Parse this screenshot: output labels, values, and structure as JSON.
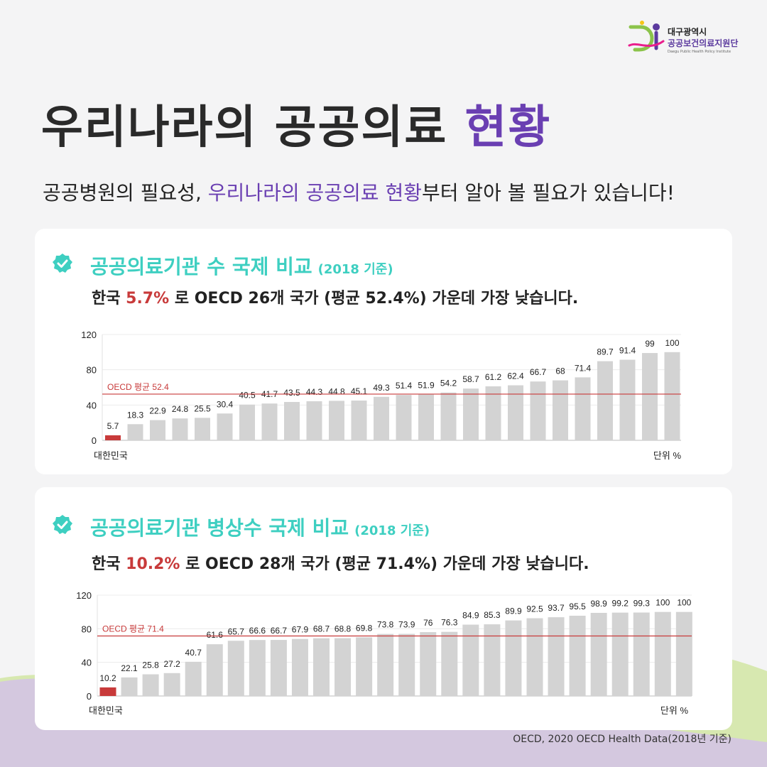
{
  "logo": {
    "org_line1": "대구광역시",
    "org_line2": "공공보건의료지원단",
    "org_english": "Daegu Public Health Policy Institute"
  },
  "title": {
    "main": "우리나라의 공공의료",
    "accent": "현황"
  },
  "subtitle": {
    "part1": "공공병원의 필요성,",
    "accent": "우리나라의 공공의료 현황",
    "part2": "부터 알아 볼 필요가 있습니다!"
  },
  "card1": {
    "title": "공공의료기관 수 국제 비교",
    "year": "(2018 기준)",
    "desc_before": "한국 ",
    "desc_value": "5.7%",
    "desc_after": " 로 OECD 26개 국가 (평균 52.4%) 가운데 가장  낮습니다."
  },
  "card2": {
    "title": "공공의료기관 병상수 국제 비교",
    "year": "(2018 기준)",
    "desc_before": "한국 ",
    "desc_value": "10.2%",
    "desc_after": " 로 OECD 28개 국가 (평균 71.4%) 가운데 가장  낮습니다."
  },
  "colors": {
    "highlight": "#c83a3a",
    "bar": "#d3d3d3",
    "teal": "#3ecfc1",
    "purple": "#6a3fb2"
  },
  "chart_data": [
    {
      "type": "bar",
      "first_category": "대한민국",
      "unit_label": "단위 %",
      "avg_label": "OECD 평균  52.4",
      "average": 52.4,
      "ylim": [
        0,
        120
      ],
      "yticks": [
        "0",
        "40",
        "80",
        "120"
      ],
      "values": [
        5.7,
        18.3,
        22.9,
        24.8,
        25.5,
        30.4,
        40.5,
        41.7,
        43.5,
        44.3,
        44.8,
        45.1,
        49.3,
        51.4,
        51.9,
        54.2,
        58.7,
        61.2,
        62.4,
        66.7,
        68,
        71.4,
        89.7,
        91.4,
        99,
        100
      ],
      "value_labels": [
        "5.7",
        "18.3",
        "22.9",
        "24.8",
        "25.5",
        "30.4",
        "40.5",
        "41.7",
        "43.5",
        "44.3",
        "44.8",
        "45.1",
        "49.3",
        "51.4",
        "51.9",
        "54.2",
        "58.7",
        "61.2",
        "62.4",
        "66.7",
        "68",
        "71.4",
        "89.7",
        "91.4",
        "99",
        "100"
      ]
    },
    {
      "type": "bar",
      "first_category": "대한민국",
      "unit_label": "단위 %",
      "avg_label": "OECD 평균 71.4",
      "average": 71.4,
      "ylim": [
        0,
        120
      ],
      "yticks": [
        "0",
        "40",
        "80",
        "120"
      ],
      "values": [
        10.2,
        22.1,
        25.8,
        27.2,
        40.7,
        61.6,
        65.7,
        66.6,
        66.7,
        67.9,
        68.7,
        68.8,
        69.8,
        73.8,
        73.9,
        76,
        76.3,
        84.9,
        85.3,
        89.9,
        92.5,
        93.7,
        95.5,
        98.9,
        99.2,
        99.3,
        100,
        100
      ],
      "value_labels": [
        "10.2",
        "22.1",
        "25.8",
        "27.2",
        "40.7",
        "61.6",
        "65.7",
        "66.6",
        "66.7",
        "67.9",
        "68.7",
        "68.8",
        "69.8",
        "73.8",
        "73.9",
        "76",
        "76.3",
        "84.9",
        "85.3",
        "89.9",
        "92.5",
        "93.7",
        "95.5",
        "98.9",
        "99.2",
        "99.3",
        "100",
        "100"
      ]
    }
  ],
  "source": "OECD, 2020 OECD Health Data(2018년 기준)"
}
